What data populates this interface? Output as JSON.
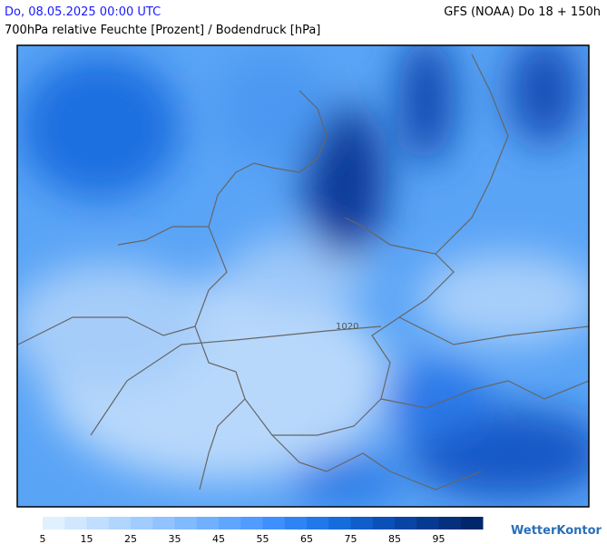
{
  "header": {
    "title": "Do, 08.05.2025 00:00 UTC",
    "model": "GFS (NOAA) Do 18 + 150h",
    "subtitle": "700hPa relative Feuchte [Prozent] / Bodendruck [hPa]"
  },
  "map": {
    "isobar_labels": [
      "1020"
    ]
  },
  "legend": {
    "colors": [
      "#e0f0ff",
      "#d0e7ff",
      "#c0deff",
      "#b0d5ff",
      "#a0ccff",
      "#90c3ff",
      "#80baff",
      "#70b0ff",
      "#60a6ff",
      "#509cff",
      "#3f90ff",
      "#2f84f5",
      "#2078ea",
      "#156cdc",
      "#0f5ecc",
      "#0a50b8",
      "#0844a4",
      "#063a90",
      "#04307e",
      "#02266c"
    ],
    "ticks": [
      "5",
      "15",
      "25",
      "35",
      "45",
      "55",
      "65",
      "75",
      "85",
      "95"
    ]
  },
  "logo": "WetterKontor"
}
